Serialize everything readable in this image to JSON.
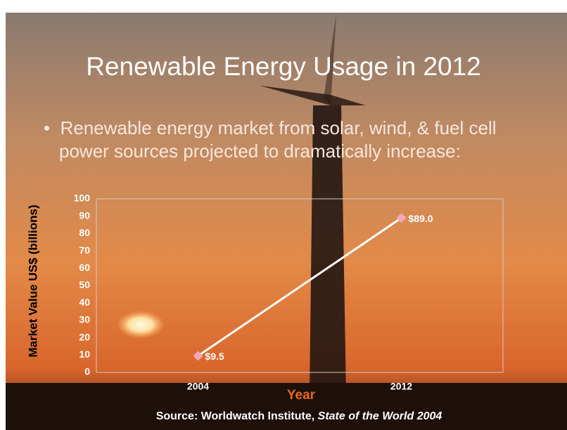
{
  "slide": {
    "title": "Renewable Energy Usage in 2012",
    "bullet": "Renewable energy market from solar, wind, & fuel cell power sources projected to dramatically increase:"
  },
  "chart_data": {
    "type": "line",
    "ylabel": "Market Value US$ (billions)",
    "xlabel": "Year",
    "categories": [
      "2004",
      "2012"
    ],
    "values": [
      9.5,
      89.0
    ],
    "value_labels": [
      "$9.5",
      "$89.0"
    ],
    "color": "#ffffff",
    "marker_color": "#f4a7bb",
    "ylim": [
      0,
      100
    ],
    "yticks": [
      0,
      10,
      20,
      30,
      40,
      50,
      60,
      70,
      80,
      90,
      100
    ],
    "source": "Source: Worldwatch Institute,",
    "source_title": "State of the World 2004"
  }
}
